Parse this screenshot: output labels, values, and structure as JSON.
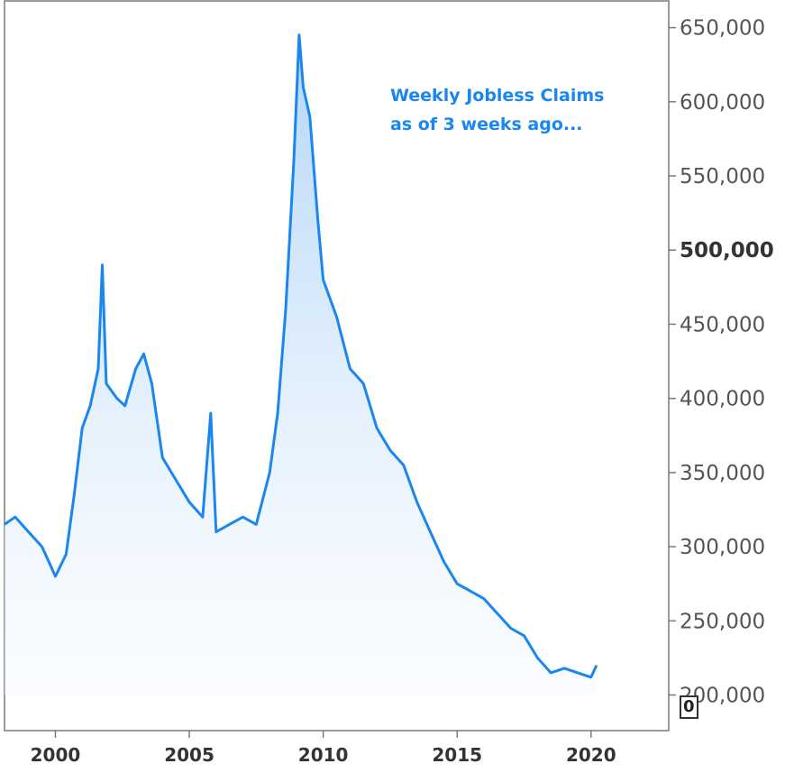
{
  "chart_data": {
    "type": "area",
    "annotation": [
      "Weekly Jobless Claims",
      "as of 3 weeks ago..."
    ],
    "y_ticks": [
      {
        "value": 650000,
        "label": "650,000"
      },
      {
        "value": 600000,
        "label": "600,000"
      },
      {
        "value": 550000,
        "label": "550,000"
      },
      {
        "value": 500000,
        "label": "500,000",
        "emphasis": true
      },
      {
        "value": 450000,
        "label": "450,000"
      },
      {
        "value": 400000,
        "label": "400,000"
      },
      {
        "value": 350000,
        "label": "350,000"
      },
      {
        "value": 300000,
        "label": "300,000"
      },
      {
        "value": 250000,
        "label": "250,000"
      },
      {
        "value": 200000,
        "label": "200,000"
      }
    ],
    "x_ticks": [
      {
        "value": 2000,
        "label": "2000"
      },
      {
        "value": 2005,
        "label": "2005"
      },
      {
        "value": 2010,
        "label": "2010"
      },
      {
        "value": 2015,
        "label": "2015"
      },
      {
        "value": 2020,
        "label": "2020"
      }
    ],
    "xlim": [
      1998.1,
      2022.9
    ],
    "ylim": [
      176000,
      668000
    ],
    "y_axis_side": "right",
    "grid": false,
    "zero_marker": "0",
    "series": [
      {
        "x": [
          1998.1,
          1998.5,
          1999.0,
          1999.5,
          2000.0,
          2000.4,
          2000.7,
          2001.0,
          2001.3,
          2001.6,
          2001.75,
          2001.9,
          2002.3,
          2002.6,
          2003.0,
          2003.3,
          2003.6,
          2004.0,
          2004.5,
          2005.0,
          2005.5,
          2005.8,
          2006.0,
          2006.5,
          2007.0,
          2007.5,
          2008.0,
          2008.3,
          2008.6,
          2008.9,
          2009.1,
          2009.25,
          2009.5,
          2009.8,
          2010.0,
          2010.5,
          2011.0,
          2011.5,
          2012.0,
          2012.5,
          2013.0,
          2013.5,
          2014.0,
          2014.5,
          2015.0,
          2015.5,
          2016.0,
          2016.5,
          2017.0,
          2017.5,
          2018.0,
          2018.5,
          2019.0,
          2019.5,
          2020.0,
          2020.2
        ],
        "values": [
          315000,
          320000,
          310000,
          300000,
          280000,
          295000,
          335000,
          380000,
          395000,
          420000,
          490000,
          410000,
          400000,
          395000,
          420000,
          430000,
          410000,
          360000,
          345000,
          330000,
          320000,
          390000,
          310000,
          315000,
          320000,
          315000,
          350000,
          390000,
          460000,
          560000,
          645000,
          610000,
          590000,
          520000,
          480000,
          455000,
          420000,
          410000,
          380000,
          365000,
          355000,
          330000,
          310000,
          290000,
          275000,
          270000,
          265000,
          255000,
          245000,
          240000,
          225000,
          215000,
          218000,
          215000,
          212000,
          220000
        ]
      }
    ]
  }
}
